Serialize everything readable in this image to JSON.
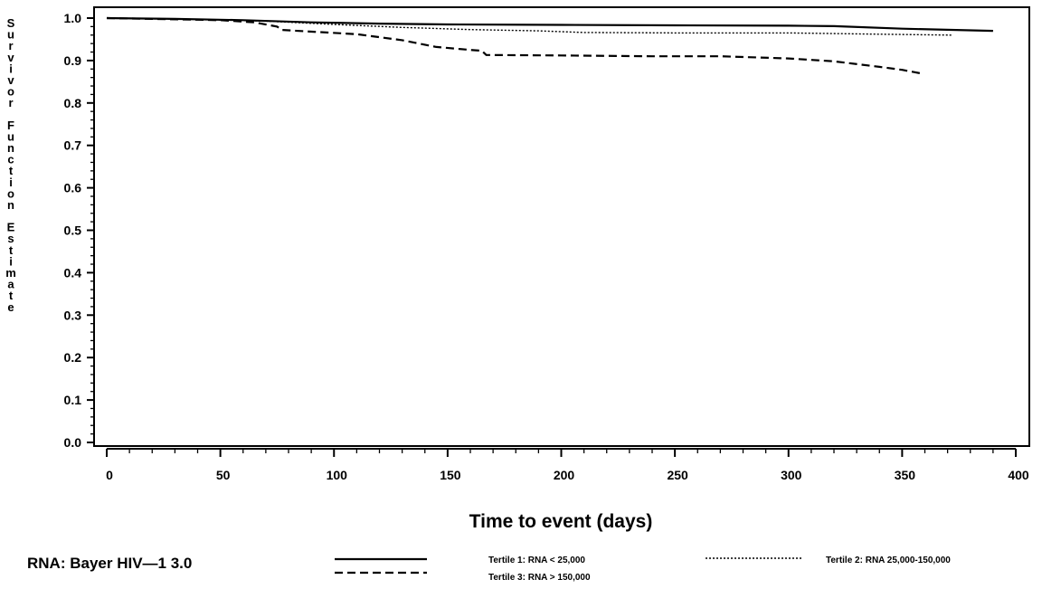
{
  "chart_data": {
    "type": "line",
    "title": "",
    "xlabel": "Time to event (days)",
    "ylabel": "Survivor Function Estimate",
    "xlim": [
      0,
      400
    ],
    "ylim": [
      0.0,
      1.0
    ],
    "x_ticks": [
      0,
      50,
      100,
      150,
      200,
      250,
      300,
      350,
      400
    ],
    "y_ticks": [
      "0.0",
      "0.1",
      "0.2",
      "0.3",
      "0.4",
      "0.5",
      "0.6",
      "0.7",
      "0.8",
      "0.9",
      "1.0"
    ],
    "grid": false,
    "legend": {
      "placement": "bottom",
      "title": "RNA: Bayer HIV—1 3.0",
      "entries": [
        {
          "series_index": 0,
          "label": "Tertile 1: RNA < 25,000"
        },
        {
          "series_index": 1,
          "label": "Tertile 2: RNA 25,000-150,000"
        },
        {
          "series_index": 2,
          "label": "Tertile 3: RNA > 150,000"
        }
      ]
    },
    "series": [
      {
        "name": "Tertile 1: RNA < 25,000",
        "line_style": "solid",
        "points": [
          [
            0,
            1.0
          ],
          [
            30,
            0.998
          ],
          [
            60,
            0.995
          ],
          [
            90,
            0.99
          ],
          [
            120,
            0.987
          ],
          [
            150,
            0.985
          ],
          [
            200,
            0.984
          ],
          [
            250,
            0.983
          ],
          [
            300,
            0.982
          ],
          [
            320,
            0.981
          ],
          [
            350,
            0.975
          ],
          [
            390,
            0.97
          ]
        ]
      },
      {
        "name": "Tertile 2: RNA 25,000-150,000",
        "line_style": "dotted",
        "points": [
          [
            0,
            1.0
          ],
          [
            40,
            0.997
          ],
          [
            70,
            0.993
          ],
          [
            100,
            0.985
          ],
          [
            130,
            0.978
          ],
          [
            160,
            0.973
          ],
          [
            190,
            0.97
          ],
          [
            210,
            0.966
          ],
          [
            250,
            0.965
          ],
          [
            300,
            0.965
          ],
          [
            340,
            0.962
          ],
          [
            372,
            0.96
          ]
        ]
      },
      {
        "name": "Tertile 3: RNA > 150,000",
        "line_style": "dashed",
        "points": [
          [
            0,
            1.0
          ],
          [
            50,
            0.995
          ],
          [
            65,
            0.99
          ],
          [
            75,
            0.98
          ],
          [
            77,
            0.972
          ],
          [
            110,
            0.962
          ],
          [
            130,
            0.948
          ],
          [
            145,
            0.932
          ],
          [
            160,
            0.925
          ],
          [
            165,
            0.923
          ],
          [
            167,
            0.913
          ],
          [
            200,
            0.912
          ],
          [
            240,
            0.91
          ],
          [
            270,
            0.91
          ],
          [
            300,
            0.905
          ],
          [
            320,
            0.898
          ],
          [
            340,
            0.885
          ],
          [
            350,
            0.878
          ],
          [
            358,
            0.87
          ]
        ]
      }
    ]
  }
}
